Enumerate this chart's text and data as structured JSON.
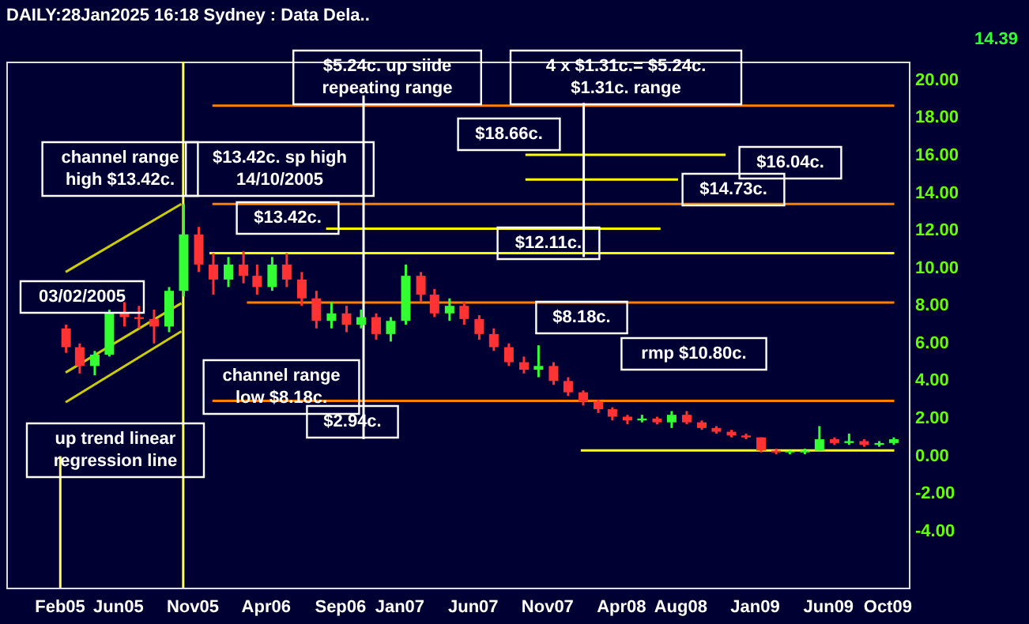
{
  "chart_data": {
    "type": "candlestick",
    "title": "DAILY:28Jan2025 16:18 Sydney : Data Dela..",
    "x": [
      "2005-02-15",
      "2005-03-15",
      "2005-04-15",
      "2005-05-15",
      "2005-06-15",
      "2005-07-15",
      "2005-08-15",
      "2005-09-15",
      "2005-10-15",
      "2005-11-15",
      "2005-12-15",
      "2006-01-15",
      "2006-02-15",
      "2006-03-15",
      "2006-04-15",
      "2006-05-15",
      "2006-06-15",
      "2006-07-15",
      "2006-08-15",
      "2006-09-15",
      "2006-10-15",
      "2006-11-15",
      "2006-12-15",
      "2007-01-15",
      "2007-02-15",
      "2007-03-15",
      "2007-04-15",
      "2007-05-15",
      "2007-06-15",
      "2007-07-15",
      "2007-08-15",
      "2007-09-15",
      "2007-10-15",
      "2007-11-15",
      "2007-12-15",
      "2008-01-15",
      "2008-02-15",
      "2008-03-15",
      "2008-04-15",
      "2008-05-15",
      "2008-06-15",
      "2008-07-15",
      "2008-08-15",
      "2008-09-15",
      "2008-10-15",
      "2008-11-15",
      "2008-12-15",
      "2009-01-15",
      "2009-02-15",
      "2009-03-15",
      "2009-04-15",
      "2009-05-15",
      "2009-06-15",
      "2009-07-15",
      "2009-08-15",
      "2009-09-15",
      "2009-10-15"
    ],
    "ohlc": [
      [
        6.8,
        7.0,
        5.5,
        5.8
      ],
      [
        5.8,
        6.0,
        4.4,
        4.8
      ],
      [
        4.8,
        5.6,
        4.3,
        5.4
      ],
      [
        5.4,
        7.8,
        5.3,
        7.6
      ],
      [
        7.6,
        8.2,
        6.9,
        7.4
      ],
      [
        7.4,
        8.0,
        6.8,
        7.3
      ],
      [
        7.3,
        7.8,
        6.0,
        6.9
      ],
      [
        6.9,
        9.0,
        6.6,
        8.8
      ],
      [
        8.8,
        13.42,
        8.5,
        11.8
      ],
      [
        11.8,
        12.2,
        9.8,
        10.2
      ],
      [
        10.2,
        10.8,
        8.6,
        9.4
      ],
      [
        9.4,
        10.6,
        9.0,
        10.2
      ],
      [
        10.2,
        10.9,
        9.2,
        9.6
      ],
      [
        9.6,
        10.2,
        8.6,
        9.0
      ],
      [
        9.0,
        10.6,
        8.8,
        10.2
      ],
      [
        10.2,
        10.8,
        9.0,
        9.4
      ],
      [
        9.4,
        9.8,
        8.0,
        8.4
      ],
      [
        8.4,
        8.8,
        6.8,
        7.2
      ],
      [
        7.2,
        8.2,
        6.8,
        7.6
      ],
      [
        7.6,
        8.0,
        6.6,
        7.0
      ],
      [
        7.0,
        7.8,
        6.8,
        7.4
      ],
      [
        7.4,
        7.6,
        6.2,
        6.5
      ],
      [
        6.5,
        7.4,
        6.1,
        7.2
      ],
      [
        7.2,
        10.2,
        7.0,
        9.6
      ],
      [
        9.6,
        9.8,
        8.2,
        8.6
      ],
      [
        8.6,
        8.9,
        7.4,
        7.6
      ],
      [
        7.6,
        8.4,
        7.2,
        8.0
      ],
      [
        8.0,
        8.2,
        7.0,
        7.3
      ],
      [
        7.3,
        7.5,
        6.2,
        6.5
      ],
      [
        6.5,
        6.8,
        5.6,
        5.8
      ],
      [
        5.8,
        6.0,
        4.8,
        5.0
      ],
      [
        5.0,
        5.3,
        4.4,
        4.6
      ],
      [
        4.6,
        5.9,
        4.2,
        4.8
      ],
      [
        4.8,
        5.0,
        3.8,
        4.0
      ],
      [
        4.0,
        4.2,
        3.2,
        3.4
      ],
      [
        3.4,
        3.5,
        2.7,
        2.9
      ],
      [
        2.9,
        3.0,
        2.3,
        2.5
      ],
      [
        2.5,
        2.6,
        1.9,
        2.1
      ],
      [
        2.1,
        2.2,
        1.7,
        1.9
      ],
      [
        1.9,
        2.2,
        1.8,
        2.0
      ],
      [
        2.0,
        2.1,
        1.7,
        1.8
      ],
      [
        1.8,
        2.4,
        1.5,
        2.2
      ],
      [
        2.2,
        2.4,
        1.7,
        1.8
      ],
      [
        1.8,
        1.9,
        1.4,
        1.5
      ],
      [
        1.5,
        1.6,
        1.2,
        1.3
      ],
      [
        1.3,
        1.4,
        1.0,
        1.1
      ],
      [
        1.1,
        1.2,
        0.9,
        1.0
      ],
      [
        1.0,
        1.0,
        0.2,
        0.3
      ],
      [
        0.3,
        0.4,
        0.1,
        0.2
      ],
      [
        0.2,
        0.3,
        0.1,
        0.25
      ],
      [
        0.2,
        0.4,
        0.1,
        0.3
      ],
      [
        0.3,
        1.6,
        0.3,
        0.9
      ],
      [
        0.9,
        1.0,
        0.6,
        0.7
      ],
      [
        0.7,
        1.2,
        0.6,
        0.8
      ],
      [
        0.8,
        0.9,
        0.5,
        0.6
      ],
      [
        0.6,
        0.8,
        0.5,
        0.7
      ],
      [
        0.7,
        1.0,
        0.6,
        0.9
      ]
    ],
    "colors": [
      "#ff3333",
      "#ff3333",
      "#33ff33",
      "#33ff33",
      "#ff3333",
      "#ff3333",
      "#ff3333",
      "#33ff33",
      "#33ff33",
      "#ff3333",
      "#ff3333",
      "#33ff33",
      "#ff3333",
      "#ff3333",
      "#33ff33",
      "#ff3333",
      "#ff3333",
      "#ff3333",
      "#33ff33",
      "#ff3333",
      "#33ff33",
      "#ff3333",
      "#33ff33",
      "#33ff33",
      "#ff3333",
      "#ff3333",
      "#33ff33",
      "#ff3333",
      "#ff3333",
      "#ff3333",
      "#ff3333",
      "#ff3333",
      "#33ff33",
      "#ff3333",
      "#ff3333",
      "#ff3333",
      "#ff3333",
      "#ff3333",
      "#ff3333",
      "#33ff33",
      "#ff3333",
      "#33ff33",
      "#ff3333",
      "#ff3333",
      "#ff3333",
      "#ff3333",
      "#ff3333",
      "#ff3333",
      "#ff3333",
      "#33ff33",
      "#33ff33",
      "#33ff33",
      "#ff3333",
      "#33ff33",
      "#ff3333",
      "#33ff33",
      "#33ff33"
    ],
    "series": [
      {
        "type": "line",
        "color": "#ff8000",
        "x": [
          "2005-12-13",
          "2009-10-16"
        ],
        "values": [
          18.66,
          18.66
        ]
      },
      {
        "type": "line",
        "color": "#ff8000",
        "x": [
          "2005-12-13",
          "2009-10-16"
        ],
        "values": [
          13.42,
          13.42
        ]
      },
      {
        "type": "line",
        "color": "#ff8000",
        "x": [
          "2006-02-22",
          "2009-10-16"
        ],
        "values": [
          8.18,
          8.18
        ]
      },
      {
        "type": "line",
        "color": "#ff8000",
        "x": [
          "2005-12-13",
          "2009-10-16"
        ],
        "values": [
          2.94,
          2.94
        ]
      },
      {
        "type": "line",
        "color": "#ffff00",
        "x": [
          "2007-09-18",
          "2008-11-03"
        ],
        "values": [
          16.04,
          16.04
        ]
      },
      {
        "type": "line",
        "color": "#ffff00",
        "x": [
          "2007-09-18",
          "2008-07-28"
        ],
        "values": [
          14.73,
          14.73
        ]
      },
      {
        "type": "line",
        "color": "#ffff00",
        "x": [
          "2006-08-04",
          "2008-06-22"
        ],
        "values": [
          12.11,
          12.11
        ]
      },
      {
        "type": "line",
        "color": "#ffff00",
        "x": [
          "2005-12-07",
          "2009-10-16"
        ],
        "values": [
          10.8,
          10.8
        ]
      },
      {
        "type": "line",
        "color": "#ffff00",
        "x": [
          "2008-01-10",
          "2009-10-16"
        ],
        "values": [
          0.3,
          0.3
        ]
      },
      {
        "type": "line",
        "color": "#cccc00",
        "x": [
          "2005-02-14",
          "2005-10-10"
        ],
        "values": [
          9.8,
          13.42
        ]
      },
      {
        "type": "line",
        "color": "#cccc00",
        "x": [
          "2005-02-14",
          "2005-10-10"
        ],
        "values": [
          4.45,
          8.14
        ]
      },
      {
        "type": "line",
        "color": "#cccc00",
        "x": [
          "2005-02-14",
          "2005-10-10"
        ],
        "values": [
          2.87,
          6.64
        ]
      },
      {
        "type": "line",
        "color": "#ffffff",
        "x": [
          "2006-10-20",
          "2006-10-20"
        ],
        "values": [
          19.2,
          0.9
        ]
      },
      {
        "type": "line",
        "color": "#ffffff",
        "x": [
          "2008-01-16",
          "2008-01-16"
        ],
        "values": [
          18.8,
          10.6
        ]
      }
    ],
    "ref_lines": [
      {
        "axis": "x",
        "value": "2005-02-03",
        "color": "#ffff66"
      },
      {
        "axis": "x",
        "value": "2005-10-14",
        "color": "#ffff66"
      }
    ],
    "annotations": [
      "$5.24c. up siide\nrepeating range",
      "4 x $1.31c.= $5.24c.\n$1.31c. range",
      "$18.66c.",
      "$16.04c.",
      "$14.73c.",
      "$13.42c.",
      "$12.11c.",
      "rmp $10.80c.",
      "$8.18c.",
      "channel range\nhigh $13.42c.",
      "$13.42c. sp high\n14/10/2005",
      "03/02/2005",
      "channel range\nlow $8.18c.",
      "$2.94c.",
      "up trend linear\nregression line",
      "14.39"
    ],
    "xlim": [
      "2004-10-15",
      "2009-11-15"
    ],
    "ylim": [
      -7,
      21
    ],
    "xticks": [
      {
        "value": "2005-02-01",
        "label": "Feb05"
      },
      {
        "value": "2005-06-01",
        "label": "Jun05"
      },
      {
        "value": "2005-11-01",
        "label": "Nov05"
      },
      {
        "value": "2006-04-01",
        "label": "Apr06"
      },
      {
        "value": "2006-09-01",
        "label": "Sep06"
      },
      {
        "value": "2007-01-01",
        "label": "Jan07"
      },
      {
        "value": "2007-06-01",
        "label": "Jun07"
      },
      {
        "value": "2007-11-01",
        "label": "Nov07"
      },
      {
        "value": "2008-04-01",
        "label": "Apr08"
      },
      {
        "value": "2008-08-01",
        "label": "Aug08"
      },
      {
        "value": "2009-01-01",
        "label": "Jan09"
      },
      {
        "value": "2009-06-01",
        "label": "Jun09"
      },
      {
        "value": "2009-10-01",
        "label": "Oct09"
      }
    ],
    "yticks": [
      {
        "value": -4,
        "label": "-4.00"
      },
      {
        "value": -2,
        "label": "-2.00"
      },
      {
        "value": 0,
        "label": "0.00"
      },
      {
        "value": 2,
        "label": "2.00"
      },
      {
        "value": 4,
        "label": "4.00"
      },
      {
        "value": 6,
        "label": "6.00"
      },
      {
        "value": 8,
        "label": "8.00"
      },
      {
        "value": 10,
        "label": "10.00"
      },
      {
        "value": 12,
        "label": "12.00"
      },
      {
        "value": 14,
        "label": "14.00"
      },
      {
        "value": 16,
        "label": "16.00"
      },
      {
        "value": 18,
        "label": "18.00"
      },
      {
        "value": 20,
        "label": "20.00"
      }
    ],
    "grid": false
  }
}
